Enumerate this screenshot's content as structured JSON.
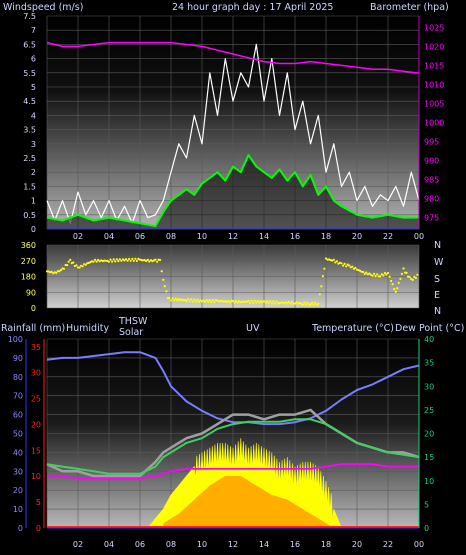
{
  "header": {
    "windspeed_label": "Windspeed (m/s)",
    "title": "24 hour graph day : 17 April 2025",
    "barometer_label": "Barometer (hpa)"
  },
  "lower_header": {
    "rainfall_label": "Rainfall (mm)",
    "humidity_label": "Humidity",
    "thsw_label": "THSW",
    "solar_label": "Solar",
    "uv_label": "UV",
    "temperature_label": "Temperature (°C)",
    "dewpoint_label": "Dew Point (°C)"
  },
  "compass": [
    "N",
    "W",
    "S",
    "E",
    "N"
  ],
  "colors": {
    "windspeed": "#ffffff",
    "wind_avg": "#00ff00",
    "barometer": "#ff00ff",
    "direction": "#ffff00",
    "humidity": "#7b7bff",
    "thsw": "#a0a0a0",
    "temperature": "#40d060",
    "dewpoint": "#ff00ff",
    "solar": "#ffff00",
    "uv": "#ff8c00",
    "rain_axis": "#ff2020",
    "temp_axis": "#10d080"
  },
  "chart_data": [
    {
      "type": "line",
      "title": "24 hour graph day : 17 April 2025",
      "ylabel": "Windspeed (m/s)",
      "y2label": "Barometer (hpa)",
      "ylim": [
        0,
        7.5
      ],
      "y2lim": [
        972,
        1028
      ],
      "yticks": [
        "0",
        "0.5",
        "1",
        "1.5",
        "2",
        "2.5",
        "3",
        "3.5",
        "4",
        "4.5",
        "5",
        "5.5",
        "6",
        "6.5",
        "7",
        "7.5"
      ],
      "y2ticks": [
        "975",
        "980",
        "985",
        "990",
        "995",
        "1000",
        "1005",
        "1010",
        "1015",
        "1020",
        "1025"
      ],
      "xticks": [
        "02",
        "04",
        "06",
        "08",
        "10",
        "12",
        "14",
        "16",
        "18",
        "20",
        "22",
        "00"
      ],
      "xlim": [
        0,
        24
      ],
      "series": [
        {
          "name": "Barometer",
          "axis": "right",
          "x": [
            0,
            1,
            2,
            4,
            6,
            8,
            9,
            10,
            11,
            12,
            13,
            14,
            15,
            16,
            17,
            18,
            19,
            20,
            21,
            22,
            23,
            24
          ],
          "values": [
            1021,
            1020,
            1020,
            1021,
            1021,
            1021,
            1020.5,
            1020,
            1019,
            1018,
            1017,
            1016,
            1015.5,
            1015.5,
            1016,
            1015.5,
            1015,
            1014.5,
            1014,
            1014,
            1013.5,
            1013
          ]
        },
        {
          "name": "Wind average",
          "x": [
            0,
            1,
            2,
            3,
            4,
            5,
            6,
            7,
            7.5,
            8,
            8.5,
            9,
            9.5,
            10,
            10.5,
            11,
            11.5,
            12,
            12.5,
            13,
            13.5,
            14,
            14.5,
            15,
            15.5,
            16,
            16.5,
            17,
            17.5,
            18,
            18.5,
            19,
            20,
            21,
            22,
            23,
            24
          ],
          "values": [
            0.4,
            0.3,
            0.5,
            0.3,
            0.4,
            0.3,
            0.2,
            0.1,
            0.6,
            1.0,
            1.2,
            1.4,
            1.2,
            1.6,
            1.8,
            2.0,
            1.7,
            2.2,
            2.0,
            2.6,
            2.2,
            2.0,
            1.8,
            2.1,
            1.7,
            2.0,
            1.5,
            1.9,
            1.2,
            1.5,
            1.0,
            0.8,
            0.5,
            0.4,
            0.5,
            0.4,
            0.4
          ]
        },
        {
          "name": "Wind gust",
          "x": [
            0,
            0.5,
            1,
            1.5,
            2,
            2.5,
            3,
            3.5,
            4,
            4.5,
            5,
            5.5,
            6,
            6.5,
            7,
            7.5,
            8,
            8.5,
            9,
            9.5,
            10,
            10.5,
            11,
            11.5,
            12,
            12.5,
            13,
            13.5,
            14,
            14.5,
            15,
            15.5,
            16,
            16.5,
            17,
            17.5,
            18,
            18.5,
            19,
            19.5,
            20,
            20.5,
            21,
            21.5,
            22,
            22.5,
            23,
            23.5,
            24
          ],
          "values": [
            1.0,
            0.3,
            1.0,
            0.2,
            1.3,
            0.5,
            1.0,
            0.4,
            1.0,
            0.3,
            0.8,
            0.2,
            1.0,
            0.4,
            0.5,
            1.0,
            2.0,
            3.0,
            2.5,
            4.0,
            3.0,
            5.5,
            4.0,
            6.0,
            4.5,
            5.5,
            5.0,
            6.5,
            4.5,
            6.0,
            4.0,
            5.5,
            3.5,
            4.5,
            3.0,
            4.0,
            2.0,
            3.0,
            1.5,
            2.0,
            1.0,
            1.5,
            0.8,
            1.2,
            1.0,
            1.5,
            0.8,
            2.0,
            1.0
          ]
        }
      ]
    },
    {
      "type": "scatter",
      "ylabel": "Wind direction",
      "ylim": [
        0,
        360
      ],
      "yticks": [
        "0",
        "90",
        "180",
        "270",
        "360"
      ],
      "xlim": [
        0,
        24
      ],
      "series": [
        {
          "name": "Direction",
          "x": [
            0,
            0.5,
            1,
            1.5,
            2,
            2.5,
            3,
            4,
            5,
            6,
            6.5,
            7,
            7.3,
            7.5,
            7.8,
            8,
            9,
            10,
            11,
            12,
            13,
            14,
            15,
            16,
            16.5,
            17,
            17.5,
            18,
            18.5,
            19,
            19.5,
            20,
            20.5,
            21,
            21.5,
            22,
            22.5,
            23,
            23.5,
            24
          ],
          "values": [
            210,
            200,
            220,
            270,
            230,
            250,
            270,
            270,
            275,
            275,
            270,
            270,
            270,
            160,
            60,
            50,
            45,
            40,
            40,
            35,
            35,
            35,
            30,
            30,
            25,
            25,
            25,
            280,
            270,
            250,
            240,
            220,
            200,
            190,
            185,
            200,
            90,
            220,
            160,
            190
          ]
        }
      ]
    },
    {
      "type": "line",
      "ylabel": "Humidity",
      "y2label": "Temperature (°C)",
      "ylim": [
        0,
        100
      ],
      "y2lim": [
        0,
        40
      ],
      "yticks": [
        "0",
        "10",
        "20",
        "30",
        "40",
        "50",
        "60",
        "70",
        "80",
        "90",
        "100"
      ],
      "y2ticks": [
        "0",
        "5",
        "10",
        "15",
        "20",
        "25",
        "30",
        "35",
        "40"
      ],
      "raintick_labels": [
        "0",
        "5",
        "10",
        "15",
        "20",
        "25",
        "30",
        "35"
      ],
      "xticks": [
        "02",
        "04",
        "06",
        "08",
        "10",
        "12",
        "14",
        "16",
        "18",
        "20",
        "22",
        "00"
      ],
      "xlim": [
        0,
        24
      ],
      "series": [
        {
          "name": "Humidity",
          "axis": "left",
          "x": [
            0,
            1,
            2,
            3,
            4,
            5,
            6,
            7,
            7.5,
            8,
            9,
            10,
            11,
            12,
            13,
            14,
            15,
            16,
            17,
            18,
            19,
            20,
            21,
            22,
            23,
            24
          ],
          "values": [
            89,
            90,
            90,
            91,
            92,
            93,
            93,
            90,
            83,
            75,
            67,
            62,
            58,
            56,
            56,
            55,
            55,
            56,
            58,
            62,
            68,
            73,
            76,
            80,
            84,
            86
          ]
        },
        {
          "name": "THSW",
          "axis": "right",
          "x": [
            0,
            1,
            2,
            3,
            4,
            5,
            6,
            7,
            7.5,
            8,
            9,
            10,
            11,
            12,
            13,
            14,
            15,
            16,
            17,
            18,
            19,
            20,
            21,
            22,
            23,
            24
          ],
          "values": [
            13.5,
            12,
            12,
            11,
            11,
            11,
            11,
            14,
            16,
            17,
            19,
            20,
            22,
            24,
            24,
            23,
            24,
            24,
            25,
            22,
            20,
            18,
            17,
            16,
            16,
            15
          ]
        },
        {
          "name": "Temperature",
          "axis": "right",
          "x": [
            0,
            1,
            2,
            3,
            4,
            5,
            6,
            7,
            7.5,
            8,
            9,
            10,
            11,
            12,
            13,
            14,
            15,
            16,
            17,
            18,
            19,
            20,
            21,
            22,
            23,
            24
          ],
          "values": [
            13.5,
            13,
            12.5,
            12,
            11.5,
            11.5,
            11.5,
            13,
            15,
            16,
            18,
            19,
            21,
            22,
            22.5,
            22.5,
            22.5,
            23,
            23,
            22,
            20,
            18,
            17,
            16,
            15.5,
            15
          ]
        },
        {
          "name": "Dew Point",
          "axis": "right",
          "x": [
            0,
            1,
            2,
            3,
            4,
            5,
            6,
            7,
            8,
            9,
            10,
            11,
            12,
            13,
            14,
            15,
            16,
            17,
            18,
            19,
            20,
            21,
            22,
            23,
            24
          ],
          "values": [
            11,
            11,
            10.5,
            10.5,
            10.5,
            10.5,
            10.5,
            11,
            12,
            12.5,
            12.5,
            12.5,
            12.5,
            12.5,
            12.5,
            12.5,
            12.5,
            12.5,
            13,
            13.5,
            13.5,
            13.5,
            13,
            13,
            13
          ]
        },
        {
          "name": "Solar",
          "axis": "right",
          "x": [
            6.5,
            7,
            7.5,
            8,
            8.5,
            9,
            9.5,
            10,
            10.5,
            11,
            11.5,
            12,
            12.5,
            13,
            13.5,
            14,
            14.5,
            15,
            15.5,
            16,
            16.5,
            17,
            17.5,
            18,
            18.5,
            19
          ],
          "values": [
            0,
            2,
            4,
            7,
            9,
            11,
            13,
            14,
            15,
            16,
            16,
            15,
            17,
            15,
            16,
            15,
            14,
            12,
            13,
            11,
            12,
            12,
            11,
            8,
            4,
            0
          ]
        },
        {
          "name": "UV",
          "axis": "right",
          "x": [
            7.5,
            8.5,
            9.5,
            10.5,
            11.5,
            12.5,
            13.5,
            14.5,
            15.5,
            16.5,
            17.5,
            18.5
          ],
          "values": [
            1,
            3,
            6,
            9,
            11,
            11,
            9,
            7,
            6,
            4,
            2,
            0
          ]
        },
        {
          "name": "Rainfall",
          "axis": "rain",
          "x": [
            0,
            24
          ],
          "values": [
            0,
            0
          ]
        }
      ]
    }
  ]
}
